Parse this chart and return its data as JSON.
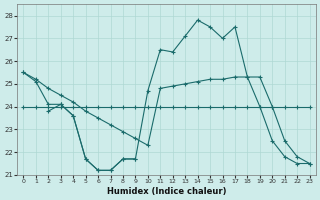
{
  "xlabel": "Humidex (Indice chaleur)",
  "xlim": [
    -0.5,
    23.5
  ],
  "ylim": [
    21,
    28.5
  ],
  "yticks": [
    21,
    22,
    23,
    24,
    25,
    26,
    27,
    28
  ],
  "xticks": [
    0,
    1,
    2,
    3,
    4,
    5,
    6,
    7,
    8,
    9,
    10,
    11,
    12,
    13,
    14,
    15,
    16,
    17,
    18,
    19,
    20,
    21,
    22,
    23
  ],
  "bg_color": "#ceecea",
  "grid_color": "#afd8d4",
  "line_color": "#1a6b6b",
  "series": [
    {
      "x": [
        0,
        1,
        2,
        3,
        4,
        5,
        6,
        7,
        8,
        9,
        10,
        11,
        12,
        13,
        14,
        15,
        16,
        17,
        18,
        19,
        20,
        21,
        22,
        23
      ],
      "y": [
        25.5,
        25.1,
        24.1,
        24.1,
        23.6,
        21.7,
        21.2,
        21.2,
        21.7,
        21.7,
        24.7,
        26.5,
        26.4,
        27.1,
        27.8,
        27.5,
        27.0,
        27.5,
        25.3,
        24.0,
        22.5,
        21.8,
        21.5,
        21.5
      ]
    },
    {
      "x": [
        0,
        1,
        2,
        3,
        4,
        5,
        6,
        7,
        8,
        9,
        10,
        11,
        12,
        13,
        14,
        15,
        16,
        17,
        18,
        19,
        20,
        21,
        22,
        23
      ],
      "y": [
        24.0,
        24.0,
        24.0,
        24.0,
        24.0,
        24.0,
        24.0,
        24.0,
        24.0,
        24.0,
        24.0,
        24.0,
        24.0,
        24.0,
        24.0,
        24.0,
        24.0,
        24.0,
        24.0,
        24.0,
        24.0,
        24.0,
        24.0,
        24.0
      ]
    },
    {
      "x": [
        0,
        1,
        2,
        3,
        4,
        5,
        6,
        7,
        8,
        9,
        10,
        11,
        12,
        13,
        14,
        15,
        16,
        17,
        18,
        19,
        20,
        21,
        22,
        23
      ],
      "y": [
        25.5,
        25.2,
        24.8,
        24.5,
        24.2,
        23.8,
        23.5,
        23.2,
        22.9,
        22.6,
        22.3,
        24.8,
        24.9,
        25.0,
        25.1,
        25.2,
        25.2,
        25.3,
        25.3,
        25.3,
        24.0,
        22.5,
        21.8,
        21.5
      ]
    },
    {
      "x": [
        2,
        3,
        4,
        5,
        6,
        7,
        8,
        9
      ],
      "y": [
        23.8,
        24.1,
        23.6,
        21.7,
        21.2,
        21.2,
        21.7,
        21.7
      ]
    }
  ]
}
